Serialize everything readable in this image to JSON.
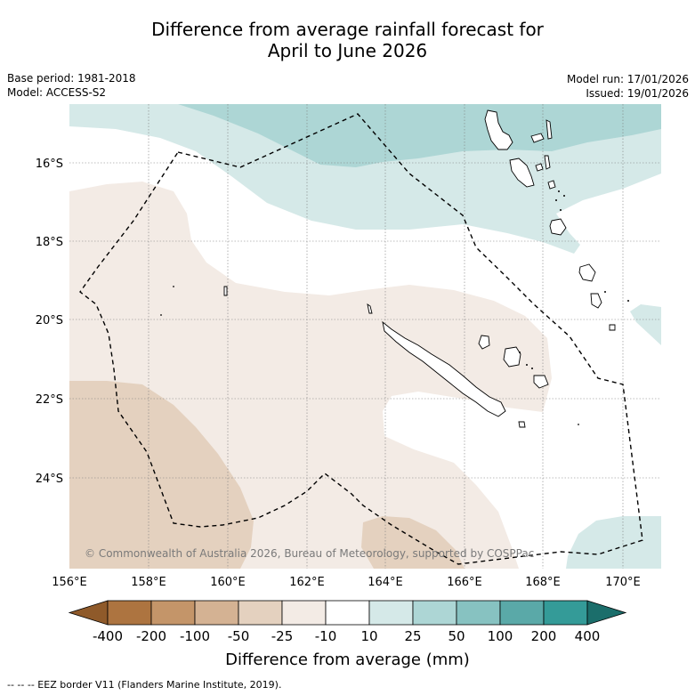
{
  "title": {
    "line1": "Difference from average rainfall forecast for",
    "line2": "April to June 2026"
  },
  "meta": {
    "base_period": "Base period: 1981-2018",
    "model": "Model: ACCESS-S2",
    "model_run": "Model run: 17/01/2026",
    "issued": "Issued: 19/01/2026"
  },
  "map": {
    "lon_ticks": [
      "156°E",
      "158°E",
      "160°E",
      "162°E",
      "164°E",
      "166°E",
      "168°E",
      "170°E"
    ],
    "lat_ticks": [
      "16°S",
      "18°S",
      "20°S",
      "22°S",
      "24°S"
    ],
    "copyright": "© Commonwealth of Australia 2026, Bureau of Meteorology, supported by COSPPac"
  },
  "colorbar": {
    "labels": [
      "-400",
      "-200",
      "-100",
      "-50",
      "-25",
      "-10",
      "10",
      "25",
      "50",
      "100",
      "200",
      "400"
    ],
    "colors": [
      "#8f5a2a",
      "#ad7440",
      "#c49569",
      "#d4b293",
      "#e4d1bf",
      "#f3ebe5",
      "#ffffff",
      "#d5e9e8",
      "#add6d5",
      "#87c2c1",
      "#5aa9a8",
      "#349b98",
      "#1b6e6b"
    ],
    "title": "Difference from average (mm)"
  },
  "footnote": "--  --  -- EEZ border V11 (Flanders Marine Institute, 2019)."
}
